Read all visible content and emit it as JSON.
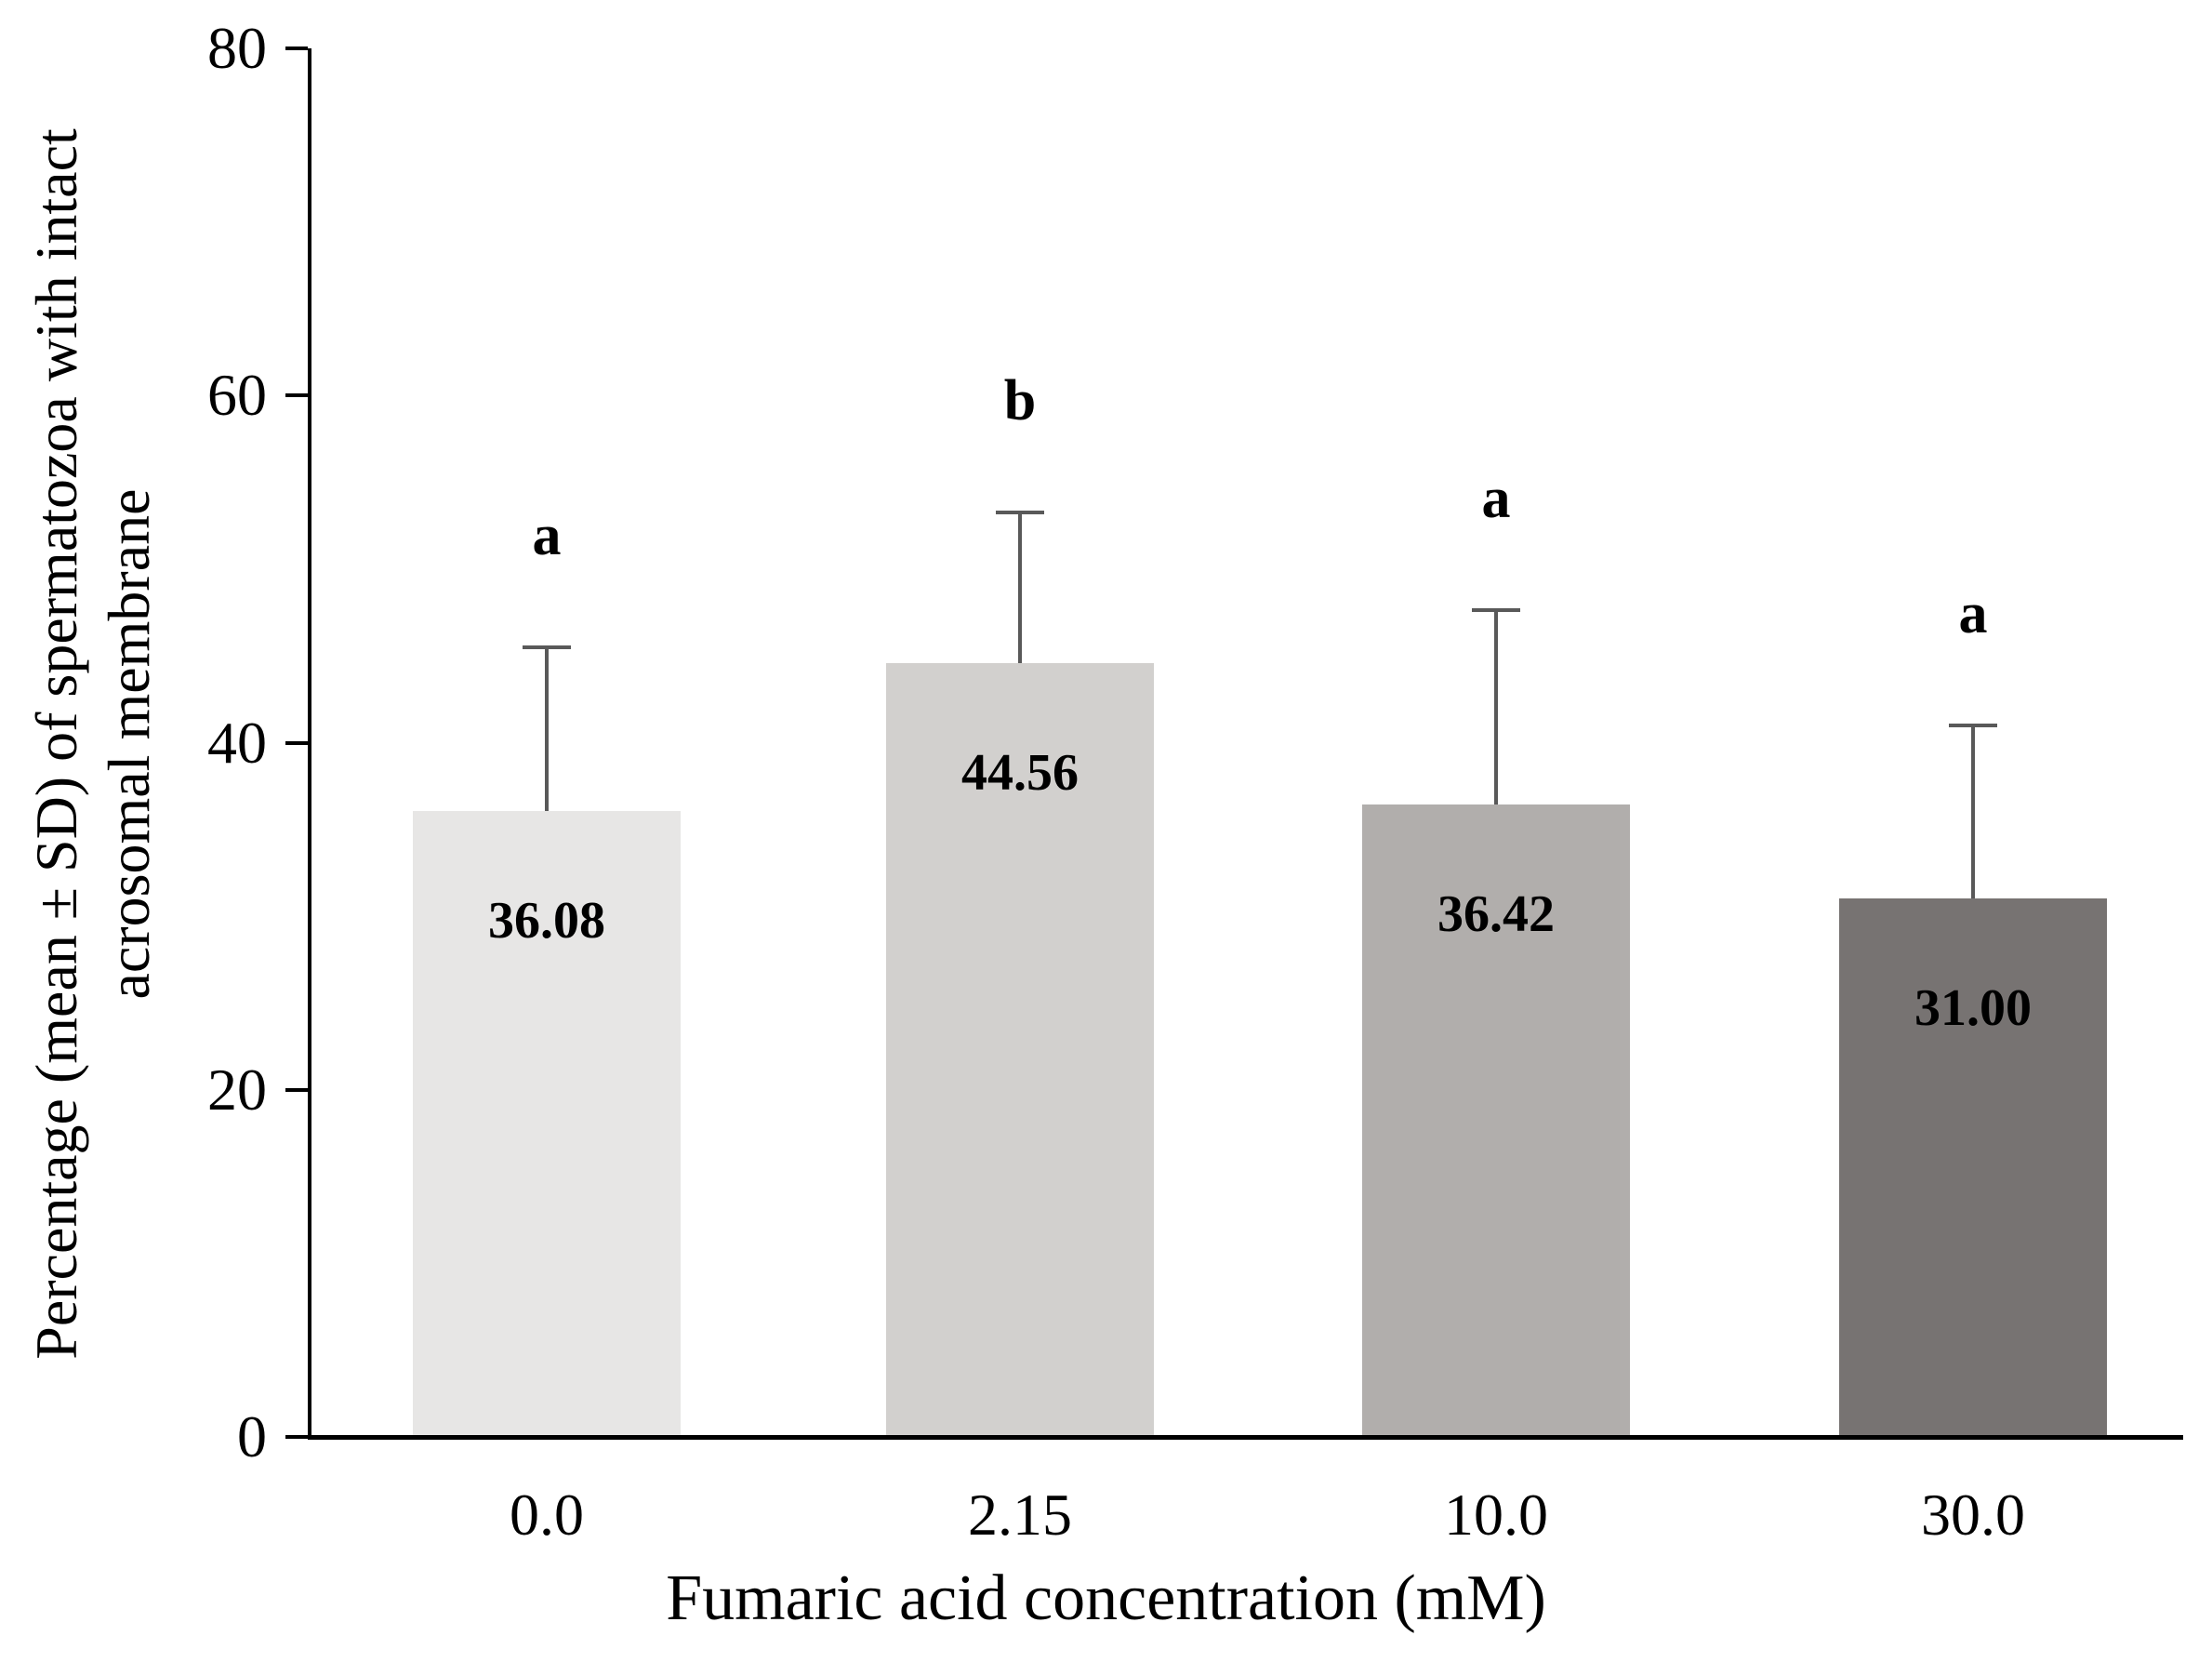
{
  "chart_data": {
    "type": "bar",
    "title": "",
    "xlabel": "Fumaric acid concentration (mM)",
    "ylabel": "Percentage (mean ± SD) of spermatozoa with intact acrosomal membrane",
    "ylabel_lines": [
      "Percentage  (mean ± SD) of spermatozoa with intact",
      "acrosomal membrane"
    ],
    "categories": [
      "0.0",
      "2.15",
      "10.0",
      "30.0"
    ],
    "values": [
      36.08,
      44.56,
      36.42,
      31.0
    ],
    "value_labels": [
      "36.08",
      "44.56",
      "36.42",
      "31.00"
    ],
    "sig_letters": [
      "a",
      "b",
      "a",
      "a"
    ],
    "sd_upper": [
      9.4,
      8.7,
      11.2,
      10.0
    ],
    "bar_colors": [
      "#e7e6e5",
      "#d2d0ce",
      "#b1aeac",
      "#777372"
    ],
    "error_bar_color": "#595959",
    "axis_color": "#000000",
    "text_color": "#000000",
    "ylim": [
      0,
      80
    ],
    "yticks": [
      "0",
      "20",
      "40",
      "60",
      "80"
    ],
    "grid": false,
    "legend": "none",
    "error_bars": "upper only, cap at top"
  }
}
